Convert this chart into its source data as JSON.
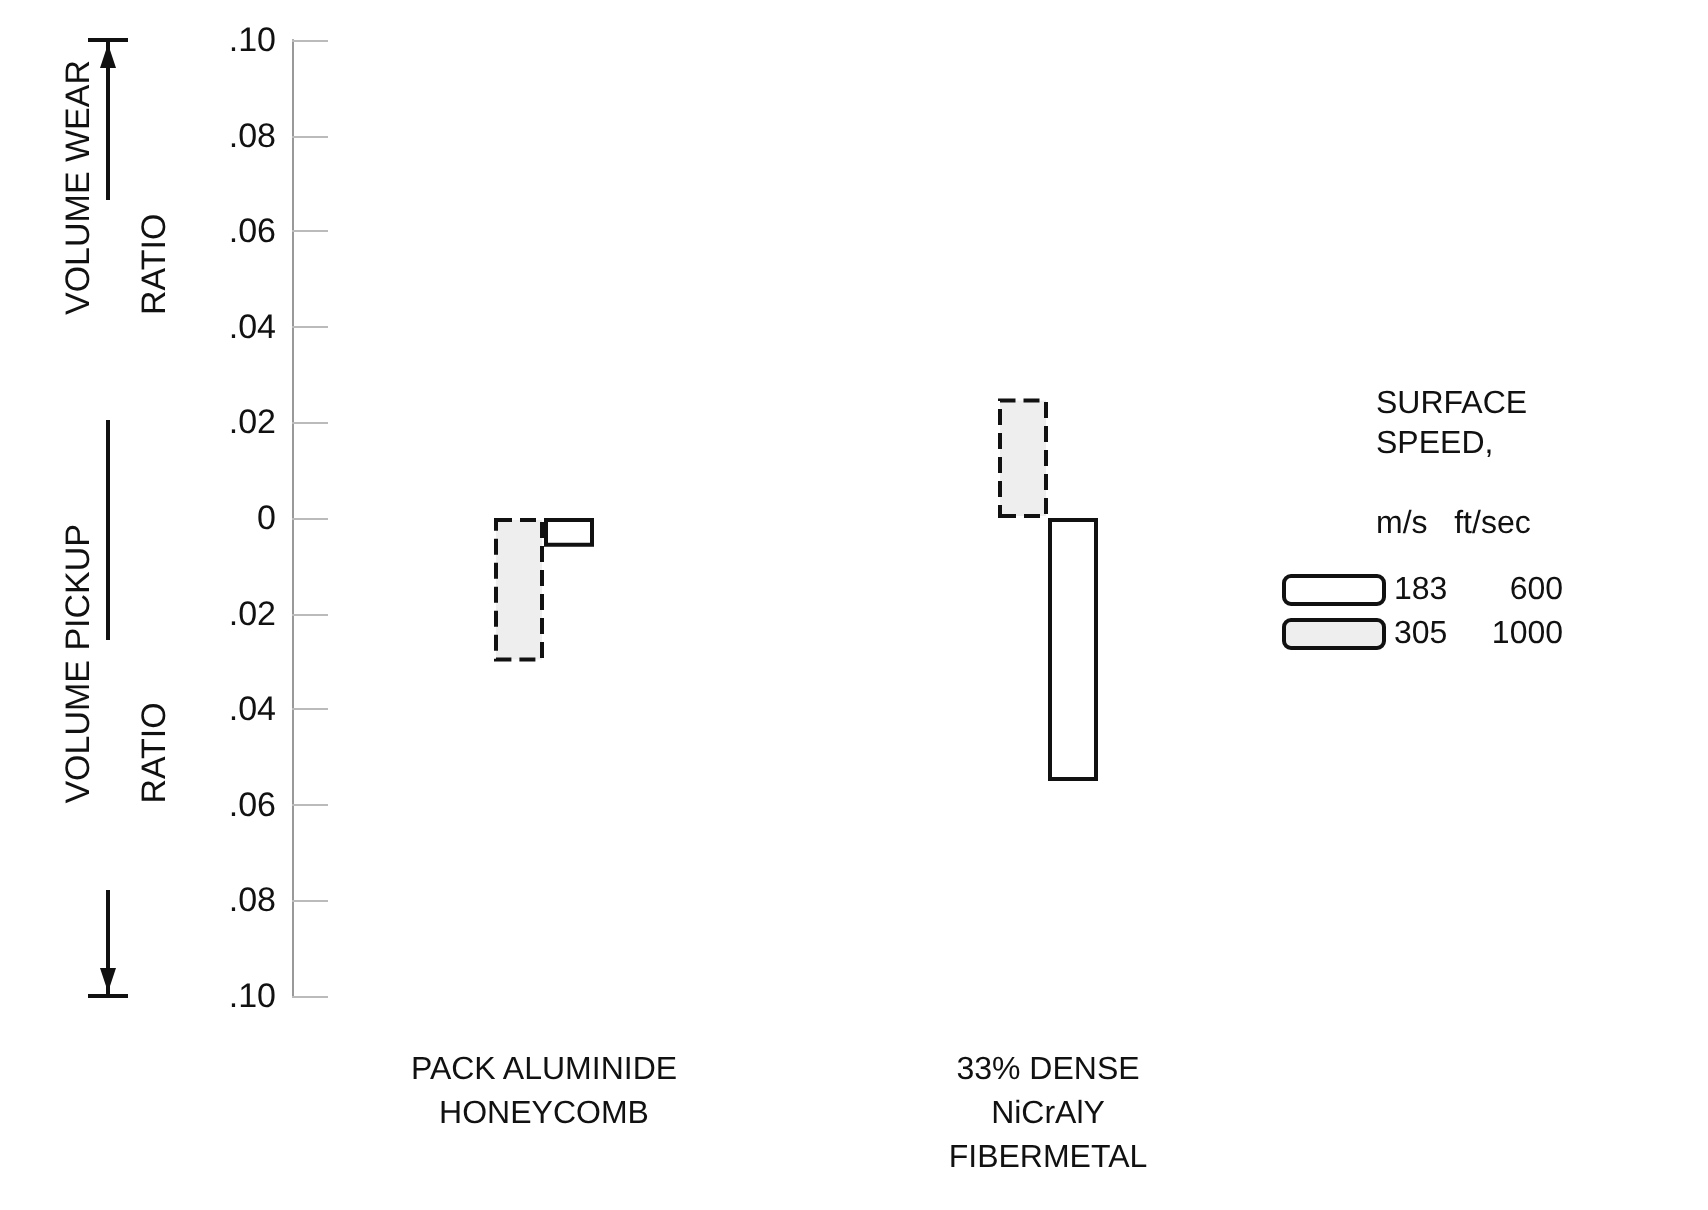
{
  "chart_data": {
    "type": "bar",
    "categories": [
      "PACK ALUMINIDE\nHONEYCOMB",
      "33% DENSE\nNiCrAlY\nFIBERMETAL"
    ],
    "series": [
      {
        "name": "305     1000",
        "color": "#eeeeee",
        "values": [
          -0.03,
          0.025
        ],
        "line_style": "dashed"
      },
      {
        "name": "183       600",
        "color": "#ffffff",
        "values": [
          -0.006,
          -0.055
        ],
        "line_style": "solid"
      }
    ],
    "ylim": [
      -0.1,
      0.1
    ],
    "yticks": [
      {
        "value": -0.1,
        "label": ".10"
      },
      {
        "value": -0.08,
        "label": ".08"
      },
      {
        "value": -0.06,
        "label": ".06"
      },
      {
        "value": -0.04,
        "label": ".04"
      },
      {
        "value": -0.02,
        "label": ".02"
      },
      0,
      {
        "value": 0.02,
        "label": ".02"
      },
      {
        "value": 0.04,
        "label": ".04"
      },
      {
        "value": 0.06,
        "label": ".06"
      },
      {
        "value": 0.08,
        "label": ".08"
      },
      {
        "value": 0.1,
        "label": ".10"
      }
    ],
    "legend_title": "SURFACE\nSPEED,\n\nm/s   ft/sec",
    "legend": "right",
    "grid": false,
    "annotations": [
      "VOLUME WEAR\nRATIO",
      "VOLUME PICKUP\nRATIO"
    ]
  }
}
